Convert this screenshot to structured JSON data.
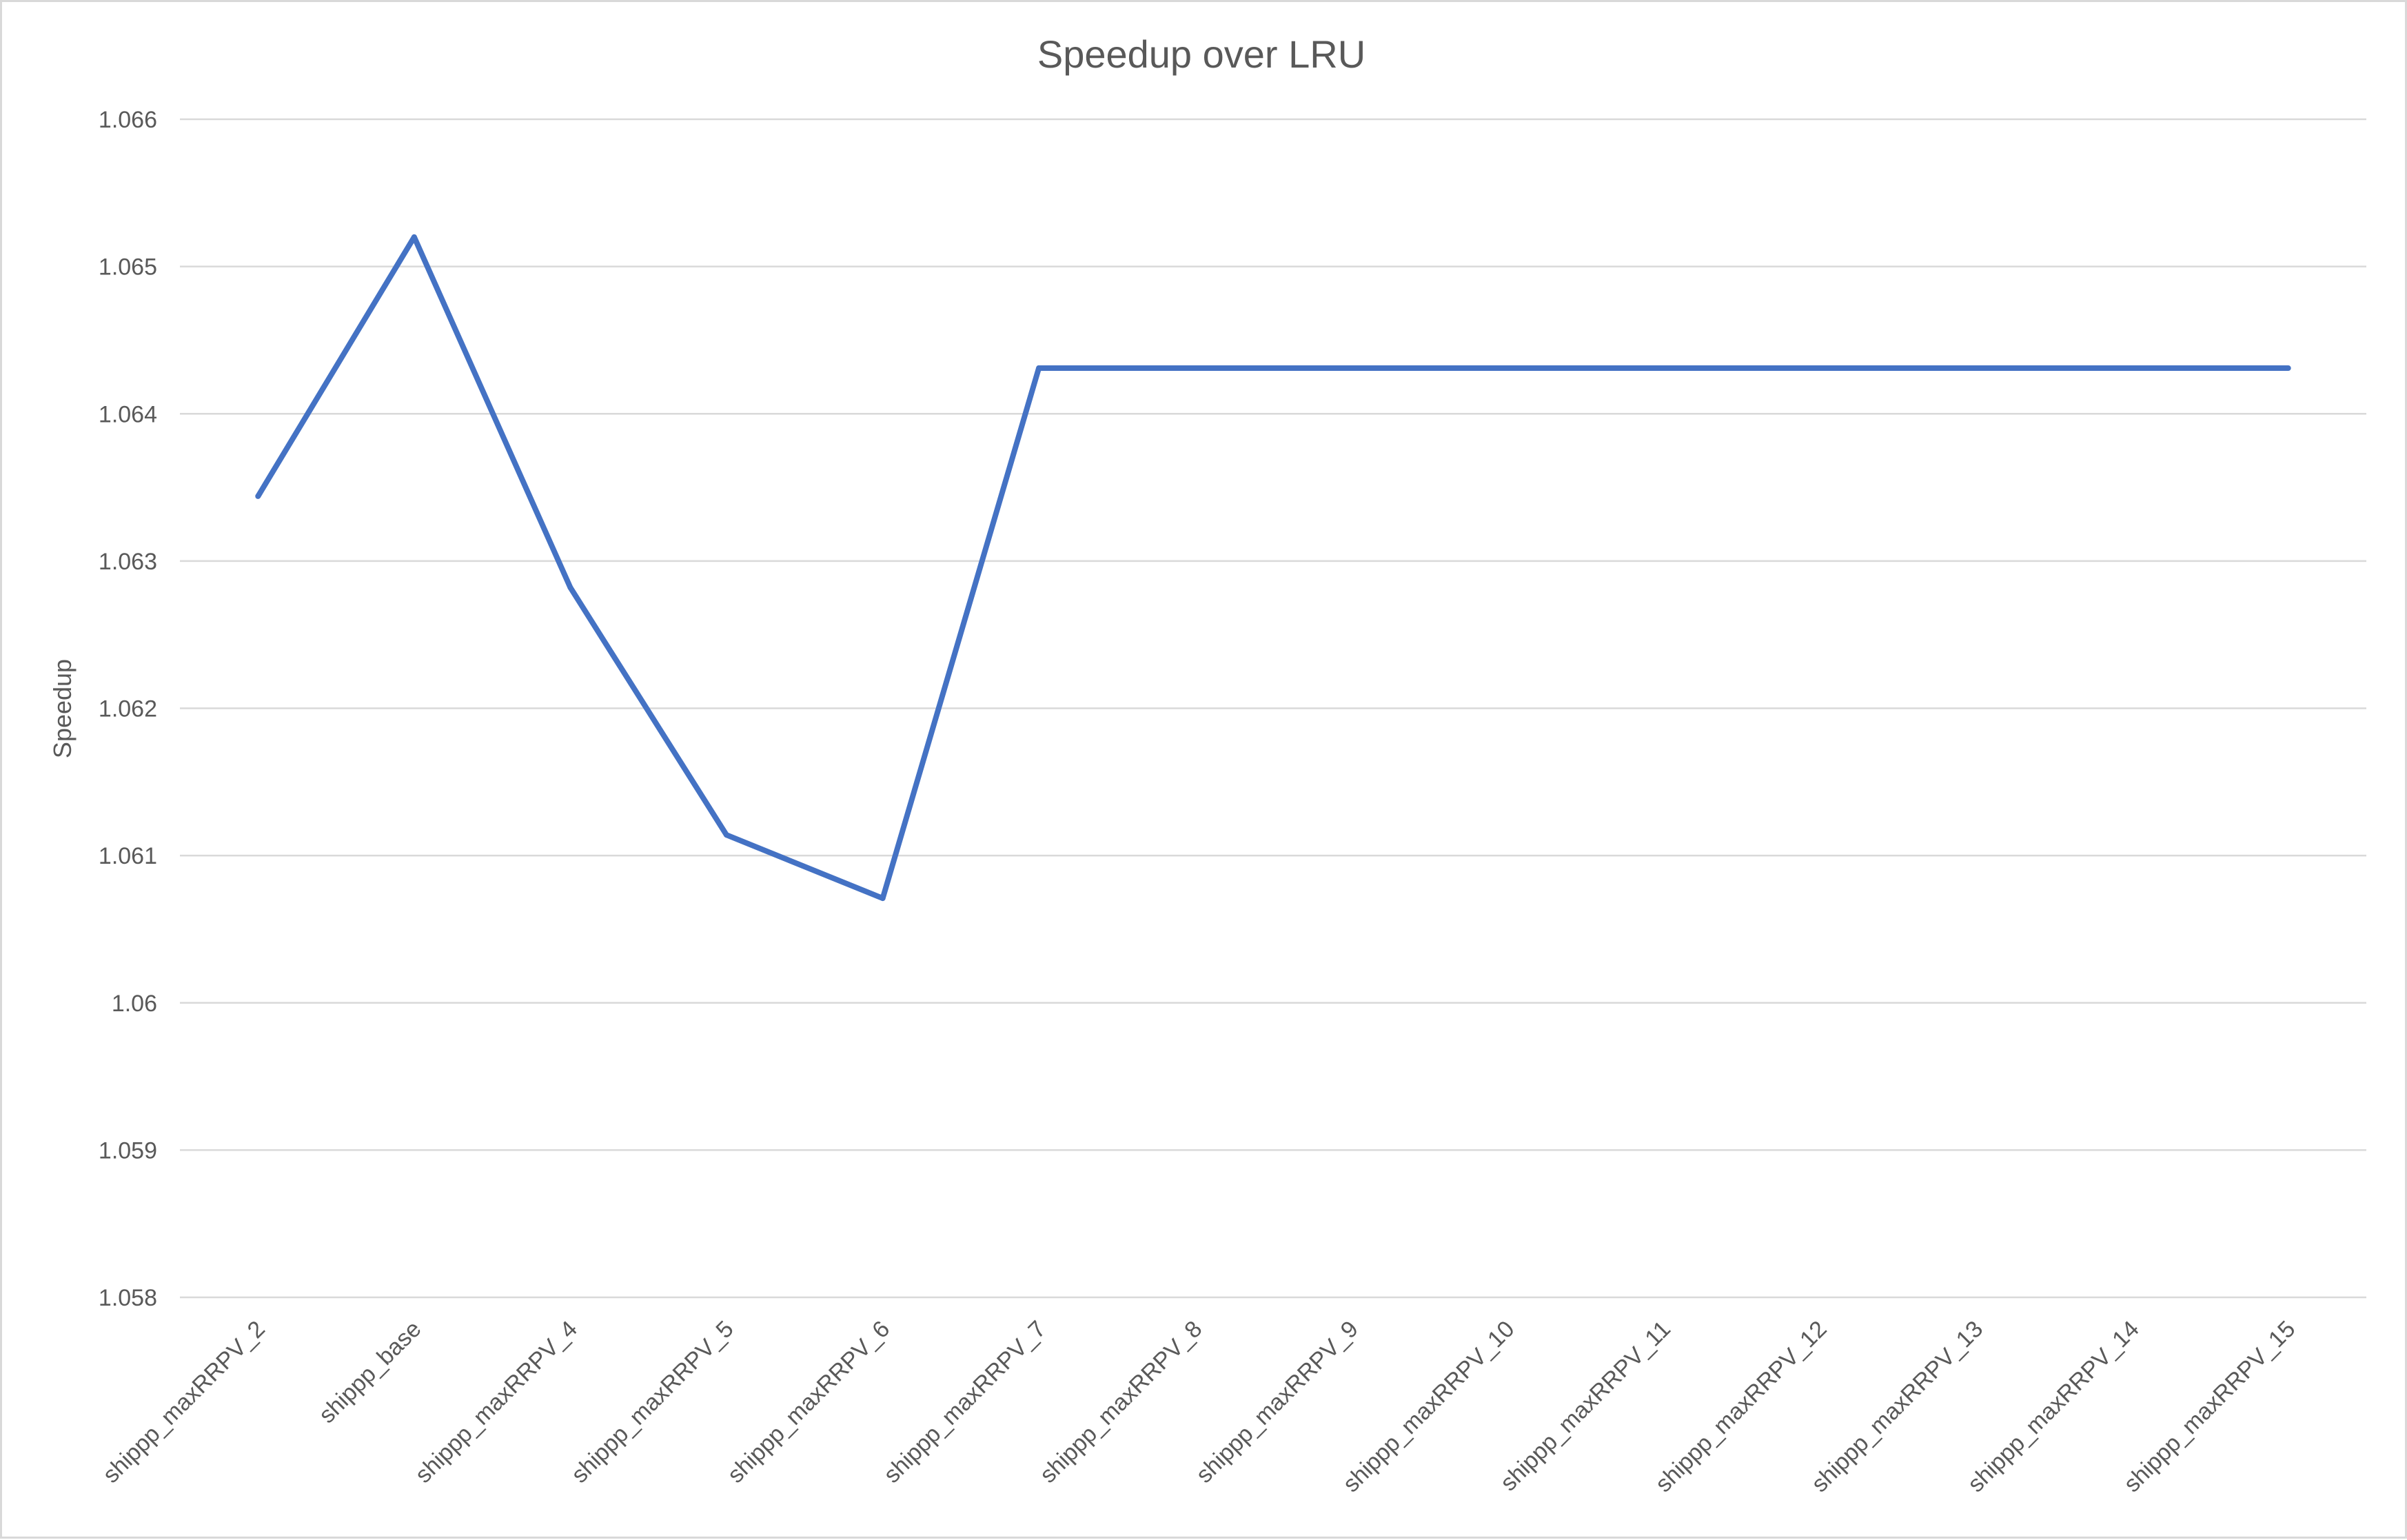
{
  "chart_data": {
    "type": "line",
    "title": "Speedup over LRU",
    "ylabel": "Speedup",
    "xlabel": "",
    "categories": [
      "shippp_maxRRPV_2",
      "shippp_base",
      "shippp_maxRRPV_4",
      "shippp_maxRRPV_5",
      "shippp_maxRRPV_6",
      "shippp_maxRRPV_7",
      "shippp_maxRRPV_8",
      "shippp_maxRRPV_9",
      "shippp_maxRRPV_10",
      "shippp_maxRRPV_11",
      "shippp_maxRRPV_12",
      "shippp_maxRRPV_13",
      "shippp_maxRRPV_14",
      "shippp_maxRRPV_15"
    ],
    "series": [
      {
        "values": [
          1.06344,
          1.0652,
          1.06282,
          1.06114,
          1.06071,
          1.06431,
          1.06431,
          1.06431,
          1.06431,
          1.06431,
          1.06431,
          1.06431,
          1.06431,
          1.06431
        ],
        "color": "#4472c4"
      }
    ],
    "ylim": [
      1.058,
      1.066
    ],
    "yticks": [
      "1.058",
      "1.059",
      "1.06",
      "1.061",
      "1.062",
      "1.063",
      "1.064",
      "1.065",
      "1.066"
    ],
    "grid": true,
    "legend": "none"
  }
}
